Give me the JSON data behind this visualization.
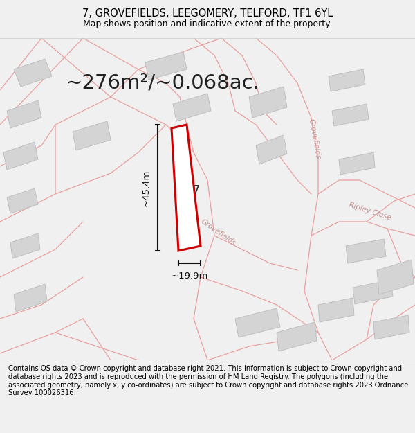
{
  "title_line1": "7, GROVEFIELDS, LEEGOMERY, TELFORD, TF1 6YL",
  "title_line2": "Map shows position and indicative extent of the property.",
  "area_text": "~276m²/~0.068ac.",
  "width_label": "~19.9m",
  "height_label": "~45.4m",
  "plot_number": "7",
  "footer_text": "Contains OS data © Crown copyright and database right 2021. This information is subject to Crown copyright and database rights 2023 and is reproduced with the permission of HM Land Registry. The polygons (including the associated geometry, namely x, y co-ordinates) are subject to Crown copyright and database rights 2023 Ordnance Survey 100026316.",
  "bg_color": "#f0f0f0",
  "map_bg": "#f8f8f8",
  "plot_fill": "#ffffff",
  "plot_edge": "#cc0000",
  "road_color": "#e8a0a0",
  "road_color2": "#d08080",
  "building_fill": "#d4d4d4",
  "building_edge": "#bbbbbb",
  "dim_line_color": "#111111",
  "road_label_color": "#c09090",
  "title_fontsize": 10.5,
  "subtitle_fontsize": 9.0,
  "area_fontsize": 21,
  "footer_fontsize": 7.2,
  "plot_label_fontsize": 13,
  "dim_fontsize": 9.5,
  "road_label_fontsize": 7.5
}
